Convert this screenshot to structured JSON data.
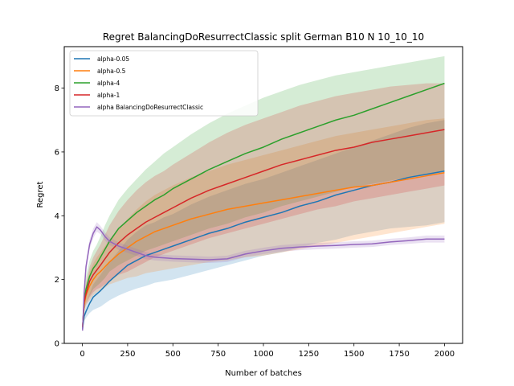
{
  "chart_data": {
    "type": "line",
    "title": "Regret BalancingDoResurrectClassic split German B10 N 10_10_10",
    "xlabel": "Number of batches",
    "ylabel": "Regret",
    "xlim": [
      -100,
      2100
    ],
    "ylim": [
      0,
      9.3
    ],
    "xticks": [
      0,
      250,
      500,
      750,
      1000,
      1250,
      1500,
      1750,
      2000
    ],
    "yticks": [
      0,
      2,
      4,
      6,
      8
    ],
    "grid": false,
    "legend_position": "upper-left",
    "shaded_bands": true,
    "x": [
      1,
      10,
      20,
      40,
      60,
      80,
      100,
      125,
      150,
      200,
      250,
      300,
      350,
      400,
      450,
      500,
      600,
      700,
      800,
      900,
      1000,
      1100,
      1200,
      1300,
      1400,
      1500,
      1600,
      1700,
      1800,
      1900,
      2000
    ],
    "series": [
      {
        "name": "alpha-0.05",
        "color": "#1f77b4",
        "values": [
          0.45,
          0.85,
          1.0,
          1.25,
          1.45,
          1.55,
          1.65,
          1.8,
          1.95,
          2.2,
          2.45,
          2.6,
          2.75,
          2.85,
          2.95,
          3.05,
          3.25,
          3.45,
          3.6,
          3.8,
          3.95,
          4.1,
          4.3,
          4.45,
          4.65,
          4.8,
          4.95,
          5.05,
          5.2,
          5.3,
          5.4
        ],
        "lower": [
          0.4,
          0.7,
          0.8,
          0.95,
          1.05,
          1.1,
          1.15,
          1.25,
          1.35,
          1.5,
          1.62,
          1.72,
          1.8,
          1.9,
          1.95,
          2.0,
          2.15,
          2.3,
          2.45,
          2.6,
          2.75,
          2.85,
          3.0,
          3.15,
          3.25,
          3.4,
          3.5,
          3.6,
          3.65,
          3.7,
          3.8
        ],
        "upper": [
          0.5,
          1.0,
          1.2,
          1.55,
          1.85,
          2.0,
          2.15,
          2.35,
          2.55,
          2.9,
          3.25,
          3.5,
          3.7,
          3.8,
          3.95,
          4.05,
          4.35,
          4.6,
          4.8,
          5.0,
          5.15,
          5.35,
          5.55,
          5.75,
          5.95,
          6.15,
          6.35,
          6.55,
          6.75,
          6.9,
          7.0
        ]
      },
      {
        "name": "alpha-0.5",
        "color": "#ff7f0e",
        "values": [
          0.5,
          1.2,
          1.5,
          1.8,
          2.0,
          2.15,
          2.25,
          2.4,
          2.55,
          2.8,
          3.0,
          3.2,
          3.35,
          3.5,
          3.6,
          3.7,
          3.9,
          4.05,
          4.2,
          4.3,
          4.4,
          4.5,
          4.6,
          4.7,
          4.8,
          4.9,
          4.95,
          5.05,
          5.15,
          5.25,
          5.35
        ],
        "lower": [
          0.45,
          1.0,
          1.2,
          1.35,
          1.5,
          1.6,
          1.65,
          1.75,
          1.85,
          1.95,
          2.05,
          2.1,
          2.2,
          2.25,
          2.3,
          2.35,
          2.45,
          2.55,
          2.6,
          2.7,
          2.75,
          2.85,
          2.95,
          3.05,
          3.15,
          3.25,
          3.35,
          3.45,
          3.55,
          3.65,
          3.75
        ],
        "upper": [
          0.55,
          1.4,
          1.8,
          2.25,
          2.5,
          2.7,
          2.85,
          3.05,
          3.25,
          3.6,
          3.9,
          4.2,
          4.45,
          4.65,
          4.8,
          4.95,
          5.2,
          5.4,
          5.6,
          5.75,
          5.9,
          6.05,
          6.2,
          6.35,
          6.5,
          6.6,
          6.7,
          6.8,
          6.9,
          7.0,
          7.05
        ]
      },
      {
        "name": "alpha-4",
        "color": "#2ca02c",
        "values": [
          0.5,
          1.3,
          1.7,
          2.1,
          2.35,
          2.5,
          2.7,
          2.95,
          3.2,
          3.6,
          3.85,
          4.1,
          4.3,
          4.5,
          4.65,
          4.85,
          5.15,
          5.45,
          5.7,
          5.95,
          6.15,
          6.4,
          6.6,
          6.8,
          7.0,
          7.15,
          7.35,
          7.55,
          7.75,
          7.95,
          8.15
        ],
        "lower": [
          0.45,
          1.0,
          1.25,
          1.5,
          1.7,
          1.8,
          1.9,
          2.05,
          2.25,
          2.45,
          2.6,
          2.75,
          2.9,
          3.0,
          3.1,
          3.2,
          3.4,
          3.6,
          3.75,
          3.95,
          4.1,
          4.3,
          4.45,
          4.6,
          4.75,
          4.9,
          5.0,
          5.1,
          5.2,
          5.3,
          5.4
        ],
        "upper": [
          0.6,
          1.6,
          2.1,
          2.6,
          2.9,
          3.1,
          3.35,
          3.7,
          4.0,
          4.5,
          4.85,
          5.15,
          5.45,
          5.7,
          5.95,
          6.15,
          6.55,
          6.9,
          7.2,
          7.45,
          7.7,
          7.9,
          8.1,
          8.25,
          8.4,
          8.5,
          8.6,
          8.7,
          8.8,
          8.9,
          9.0
        ]
      },
      {
        "name": "alpha-1",
        "color": "#d62728",
        "values": [
          0.5,
          1.3,
          1.55,
          1.95,
          2.15,
          2.3,
          2.45,
          2.65,
          2.85,
          3.15,
          3.4,
          3.6,
          3.8,
          3.95,
          4.1,
          4.25,
          4.55,
          4.8,
          5.0,
          5.2,
          5.4,
          5.6,
          5.75,
          5.9,
          6.05,
          6.15,
          6.3,
          6.4,
          6.5,
          6.6,
          6.7
        ],
        "lower": [
          0.45,
          1.05,
          1.2,
          1.45,
          1.6,
          1.7,
          1.75,
          1.85,
          1.95,
          2.15,
          2.25,
          2.4,
          2.55,
          2.7,
          2.8,
          2.9,
          3.1,
          3.3,
          3.45,
          3.6,
          3.75,
          3.9,
          4.05,
          4.2,
          4.3,
          4.45,
          4.55,
          4.65,
          4.75,
          4.85,
          4.95
        ],
        "upper": [
          0.55,
          1.55,
          1.9,
          2.4,
          2.7,
          2.9,
          3.1,
          3.4,
          3.7,
          4.15,
          4.5,
          4.8,
          5.05,
          5.25,
          5.4,
          5.6,
          5.95,
          6.3,
          6.6,
          6.85,
          7.05,
          7.25,
          7.45,
          7.6,
          7.75,
          7.85,
          7.95,
          8.05,
          8.1,
          8.15,
          8.15
        ]
      },
      {
        "name": "alpha BalancingDoResurrectClassic",
        "color": "#9467bd",
        "values": [
          0.4,
          1.6,
          2.4,
          3.1,
          3.45,
          3.65,
          3.55,
          3.35,
          3.2,
          3.05,
          2.95,
          2.85,
          2.75,
          2.7,
          2.68,
          2.66,
          2.64,
          2.62,
          2.65,
          2.8,
          2.9,
          2.98,
          3.02,
          3.05,
          3.07,
          3.1,
          3.12,
          3.18,
          3.22,
          3.27,
          3.27
        ],
        "lower": [
          0.35,
          1.45,
          2.25,
          2.95,
          3.3,
          3.5,
          3.42,
          3.22,
          3.08,
          2.93,
          2.84,
          2.74,
          2.64,
          2.6,
          2.58,
          2.56,
          2.54,
          2.52,
          2.55,
          2.7,
          2.8,
          2.88,
          2.92,
          2.95,
          2.97,
          3.0,
          3.02,
          3.08,
          3.12,
          3.16,
          3.16
        ],
        "upper": [
          0.45,
          1.75,
          2.55,
          3.25,
          3.6,
          3.8,
          3.68,
          3.48,
          3.32,
          3.17,
          3.06,
          2.96,
          2.86,
          2.8,
          2.78,
          2.76,
          2.74,
          2.72,
          2.75,
          2.9,
          3.0,
          3.08,
          3.12,
          3.15,
          3.17,
          3.2,
          3.22,
          3.28,
          3.32,
          3.38,
          3.38
        ]
      }
    ]
  }
}
